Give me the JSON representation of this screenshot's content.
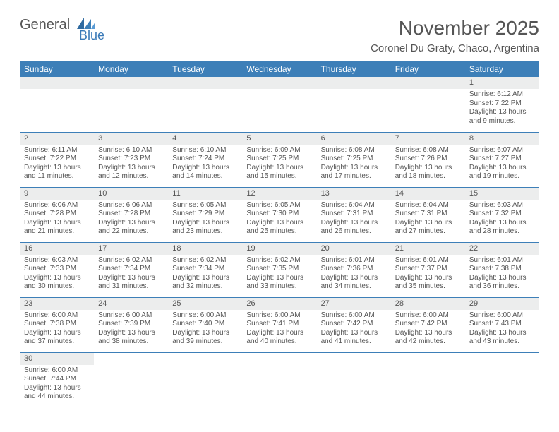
{
  "brand": {
    "general": "General",
    "blue": "Blue"
  },
  "title": "November 2025",
  "location": "Coronel Du Graty, Chaco, Argentina",
  "colors": {
    "header_bg": "#3d7fb8",
    "header_fg": "#ffffff",
    "daynum_bg": "#eceded",
    "text": "#555555",
    "rule": "#3d7fb8"
  },
  "weekdays": [
    "Sunday",
    "Monday",
    "Tuesday",
    "Wednesday",
    "Thursday",
    "Friday",
    "Saturday"
  ],
  "weeks": [
    [
      {
        "n": "",
        "sr": "",
        "ss": "",
        "dl": ""
      },
      {
        "n": "",
        "sr": "",
        "ss": "",
        "dl": ""
      },
      {
        "n": "",
        "sr": "",
        "ss": "",
        "dl": ""
      },
      {
        "n": "",
        "sr": "",
        "ss": "",
        "dl": ""
      },
      {
        "n": "",
        "sr": "",
        "ss": "",
        "dl": ""
      },
      {
        "n": "",
        "sr": "",
        "ss": "",
        "dl": ""
      },
      {
        "n": "1",
        "sr": "Sunrise: 6:12 AM",
        "ss": "Sunset: 7:22 PM",
        "dl": "Daylight: 13 hours and 9 minutes."
      }
    ],
    [
      {
        "n": "2",
        "sr": "Sunrise: 6:11 AM",
        "ss": "Sunset: 7:22 PM",
        "dl": "Daylight: 13 hours and 11 minutes."
      },
      {
        "n": "3",
        "sr": "Sunrise: 6:10 AM",
        "ss": "Sunset: 7:23 PM",
        "dl": "Daylight: 13 hours and 12 minutes."
      },
      {
        "n": "4",
        "sr": "Sunrise: 6:10 AM",
        "ss": "Sunset: 7:24 PM",
        "dl": "Daylight: 13 hours and 14 minutes."
      },
      {
        "n": "5",
        "sr": "Sunrise: 6:09 AM",
        "ss": "Sunset: 7:25 PM",
        "dl": "Daylight: 13 hours and 15 minutes."
      },
      {
        "n": "6",
        "sr": "Sunrise: 6:08 AM",
        "ss": "Sunset: 7:25 PM",
        "dl": "Daylight: 13 hours and 17 minutes."
      },
      {
        "n": "7",
        "sr": "Sunrise: 6:08 AM",
        "ss": "Sunset: 7:26 PM",
        "dl": "Daylight: 13 hours and 18 minutes."
      },
      {
        "n": "8",
        "sr": "Sunrise: 6:07 AM",
        "ss": "Sunset: 7:27 PM",
        "dl": "Daylight: 13 hours and 19 minutes."
      }
    ],
    [
      {
        "n": "9",
        "sr": "Sunrise: 6:06 AM",
        "ss": "Sunset: 7:28 PM",
        "dl": "Daylight: 13 hours and 21 minutes."
      },
      {
        "n": "10",
        "sr": "Sunrise: 6:06 AM",
        "ss": "Sunset: 7:28 PM",
        "dl": "Daylight: 13 hours and 22 minutes."
      },
      {
        "n": "11",
        "sr": "Sunrise: 6:05 AM",
        "ss": "Sunset: 7:29 PM",
        "dl": "Daylight: 13 hours and 23 minutes."
      },
      {
        "n": "12",
        "sr": "Sunrise: 6:05 AM",
        "ss": "Sunset: 7:30 PM",
        "dl": "Daylight: 13 hours and 25 minutes."
      },
      {
        "n": "13",
        "sr": "Sunrise: 6:04 AM",
        "ss": "Sunset: 7:31 PM",
        "dl": "Daylight: 13 hours and 26 minutes."
      },
      {
        "n": "14",
        "sr": "Sunrise: 6:04 AM",
        "ss": "Sunset: 7:31 PM",
        "dl": "Daylight: 13 hours and 27 minutes."
      },
      {
        "n": "15",
        "sr": "Sunrise: 6:03 AM",
        "ss": "Sunset: 7:32 PM",
        "dl": "Daylight: 13 hours and 28 minutes."
      }
    ],
    [
      {
        "n": "16",
        "sr": "Sunrise: 6:03 AM",
        "ss": "Sunset: 7:33 PM",
        "dl": "Daylight: 13 hours and 30 minutes."
      },
      {
        "n": "17",
        "sr": "Sunrise: 6:02 AM",
        "ss": "Sunset: 7:34 PM",
        "dl": "Daylight: 13 hours and 31 minutes."
      },
      {
        "n": "18",
        "sr": "Sunrise: 6:02 AM",
        "ss": "Sunset: 7:34 PM",
        "dl": "Daylight: 13 hours and 32 minutes."
      },
      {
        "n": "19",
        "sr": "Sunrise: 6:02 AM",
        "ss": "Sunset: 7:35 PM",
        "dl": "Daylight: 13 hours and 33 minutes."
      },
      {
        "n": "20",
        "sr": "Sunrise: 6:01 AM",
        "ss": "Sunset: 7:36 PM",
        "dl": "Daylight: 13 hours and 34 minutes."
      },
      {
        "n": "21",
        "sr": "Sunrise: 6:01 AM",
        "ss": "Sunset: 7:37 PM",
        "dl": "Daylight: 13 hours and 35 minutes."
      },
      {
        "n": "22",
        "sr": "Sunrise: 6:01 AM",
        "ss": "Sunset: 7:38 PM",
        "dl": "Daylight: 13 hours and 36 minutes."
      }
    ],
    [
      {
        "n": "23",
        "sr": "Sunrise: 6:00 AM",
        "ss": "Sunset: 7:38 PM",
        "dl": "Daylight: 13 hours and 37 minutes."
      },
      {
        "n": "24",
        "sr": "Sunrise: 6:00 AM",
        "ss": "Sunset: 7:39 PM",
        "dl": "Daylight: 13 hours and 38 minutes."
      },
      {
        "n": "25",
        "sr": "Sunrise: 6:00 AM",
        "ss": "Sunset: 7:40 PM",
        "dl": "Daylight: 13 hours and 39 minutes."
      },
      {
        "n": "26",
        "sr": "Sunrise: 6:00 AM",
        "ss": "Sunset: 7:41 PM",
        "dl": "Daylight: 13 hours and 40 minutes."
      },
      {
        "n": "27",
        "sr": "Sunrise: 6:00 AM",
        "ss": "Sunset: 7:42 PM",
        "dl": "Daylight: 13 hours and 41 minutes."
      },
      {
        "n": "28",
        "sr": "Sunrise: 6:00 AM",
        "ss": "Sunset: 7:42 PM",
        "dl": "Daylight: 13 hours and 42 minutes."
      },
      {
        "n": "29",
        "sr": "Sunrise: 6:00 AM",
        "ss": "Sunset: 7:43 PM",
        "dl": "Daylight: 13 hours and 43 minutes."
      }
    ],
    [
      {
        "n": "30",
        "sr": "Sunrise: 6:00 AM",
        "ss": "Sunset: 7:44 PM",
        "dl": "Daylight: 13 hours and 44 minutes."
      },
      {
        "n": "",
        "sr": "",
        "ss": "",
        "dl": ""
      },
      {
        "n": "",
        "sr": "",
        "ss": "",
        "dl": ""
      },
      {
        "n": "",
        "sr": "",
        "ss": "",
        "dl": ""
      },
      {
        "n": "",
        "sr": "",
        "ss": "",
        "dl": ""
      },
      {
        "n": "",
        "sr": "",
        "ss": "",
        "dl": ""
      },
      {
        "n": "",
        "sr": "",
        "ss": "",
        "dl": ""
      }
    ]
  ]
}
